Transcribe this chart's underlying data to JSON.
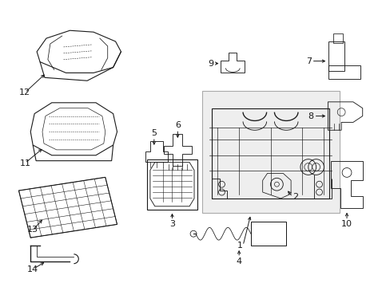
{
  "bg_color": "#ffffff",
  "line_color": "#1a1a1a",
  "label_color": "#111111",
  "box_color": "#d8d8d8",
  "fig_width": 4.89,
  "fig_height": 3.6,
  "dpi": 100
}
